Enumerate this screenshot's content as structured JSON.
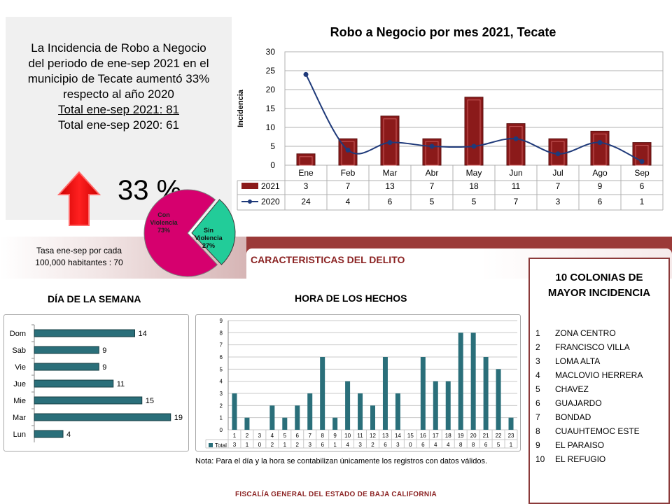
{
  "summary": {
    "line1": "La Incidencia de Robo a Negocio",
    "line2": "del periodo de ene-sep  2021 en el",
    "line3": "municipio de Tecate aumentó 33%",
    "line4": "respecto al año 2020",
    "total2021": "Total  ene-sep  2021:   81",
    "total2020": "Total  ene-sep  2020:   61",
    "pct": "33 %",
    "arrow_color": "#ff0000"
  },
  "tasa": {
    "line1": "Tasa ene-sep por cada",
    "line2": "100,000  habitantes : 70"
  },
  "caracteristicas_title": "CARACTERISTICAS DEL DELITO",
  "dia_title": "DÍA DE LA SEMANA",
  "hora_title": "HORA DE LOS HECHOS",
  "note": "Nota:  Para el día y la hora se contabilizan únicamente los registros con datos válidos.",
  "footer": "FISCALÍA GENERAL DEL ESTADO DE BAJA CALIFORNIA",
  "colonias": {
    "title_line1": "10 COLONIAS DE",
    "title_line2": "MAYOR INCIDENCIA",
    "items": [
      {
        "n": "1",
        "name": "ZONA CENTRO"
      },
      {
        "n": "2",
        "name": "FRANCISCO VILLA"
      },
      {
        "n": "3",
        "name": "LOMA ALTA"
      },
      {
        "n": "4",
        "name": "MACLOVIO HERRERA"
      },
      {
        "n": "5",
        "name": "CHAVEZ"
      },
      {
        "n": "6",
        "name": "GUAJARDO"
      },
      {
        "n": "7",
        "name": "BONDAD"
      },
      {
        "n": "8",
        "name": "CUAUHTEMOC ESTE"
      },
      {
        "n": "9",
        "name": "EL PARAISO"
      },
      {
        "n": "10",
        "name": "EL REFUGIO"
      }
    ]
  },
  "colors": {
    "bar_2021": "#8b1a1a",
    "line_2020": "#1f3a7a",
    "pie_con": "#d6006e",
    "pie_sin": "#22cc99",
    "hbar": "#2a6f7a",
    "band": "#9b3a38"
  },
  "chart_data": [
    {
      "type": "bar",
      "title": "Robo a Negocio por mes 2021, Tecate",
      "ylabel": "Incidencia",
      "ylim": [
        0,
        30
      ],
      "yticks": [
        0,
        5,
        10,
        15,
        20,
        25,
        30
      ],
      "categories": [
        "Ene",
        "Feb",
        "Mar",
        "Abr",
        "May",
        "Jun",
        "Jul",
        "Ago",
        "Sep"
      ],
      "series": [
        {
          "name": "2021",
          "kind": "bar",
          "values": [
            3,
            7,
            13,
            7,
            18,
            11,
            7,
            9,
            6
          ]
        },
        {
          "name": "2020",
          "kind": "line",
          "values": [
            24,
            4,
            6,
            5,
            5,
            7,
            3,
            6,
            1
          ]
        }
      ],
      "grid": true,
      "data_table": true
    },
    {
      "type": "pie",
      "slices": [
        {
          "label": "Con Violencia",
          "pct_label": "73%",
          "value": 73
        },
        {
          "label": "Sin Violencia",
          "pct_label": "27%",
          "value": 27
        }
      ]
    },
    {
      "type": "bar",
      "orientation": "horizontal",
      "title": "DÍA DE LA SEMANA",
      "categories": [
        "Dom",
        "Sab",
        "Vie",
        "Jue",
        "Mie",
        "Mar",
        "Lun"
      ],
      "values": [
        14,
        9,
        9,
        11,
        15,
        19,
        4
      ],
      "xlim": [
        0,
        20
      ]
    },
    {
      "type": "bar",
      "title": "HORA DE LOS HECHOS",
      "ylim": [
        0,
        9
      ],
      "yticks": [
        0,
        1,
        2,
        3,
        4,
        5,
        6,
        7,
        8,
        9
      ],
      "categories": [
        "1",
        "2",
        "3",
        "4",
        "5",
        "6",
        "7",
        "8",
        "9",
        "10",
        "11",
        "12",
        "13",
        "14",
        "15",
        "16",
        "17",
        "18",
        "19",
        "20",
        "21",
        "22",
        "23"
      ],
      "series": [
        {
          "name": "Total",
          "values": [
            3,
            1,
            0,
            2,
            1,
            2,
            3,
            6,
            1,
            4,
            3,
            2,
            6,
            3,
            0,
            6,
            4,
            4,
            8,
            8,
            6,
            5,
            1
          ]
        }
      ],
      "grid": true,
      "data_table": true
    }
  ]
}
